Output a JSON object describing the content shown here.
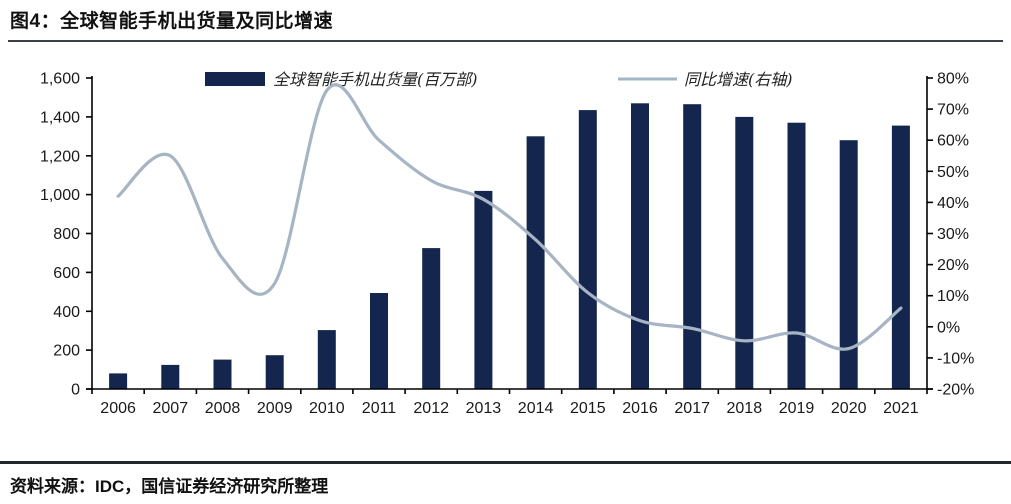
{
  "page": {
    "title": "图4：全球智能手机出货量及同比增速",
    "source": "资料来源：IDC，国信证券经济研究所整理"
  },
  "colors": {
    "bar": "#14264e",
    "line": "#a6b4c4",
    "axis": "#000000",
    "tick_label": "#1a1a1a",
    "legend_text": "#222222"
  },
  "chart_data": {
    "type": "combo_bar_line",
    "title": "全球智能手机出货量及同比增速",
    "grid": false,
    "legend_position": "top",
    "categories": [
      "2006",
      "2007",
      "2008",
      "2009",
      "2010",
      "2011",
      "2012",
      "2013",
      "2014",
      "2015",
      "2016",
      "2017",
      "2018",
      "2019",
      "2020",
      "2021"
    ],
    "series": [
      {
        "name": "全球智能手机出货量(百万部)",
        "type": "bar",
        "axis": "left",
        "values": [
          80,
          124,
          151,
          174,
          303,
          494,
          725,
          1019,
          1300,
          1435,
          1470,
          1465,
          1400,
          1370,
          1280,
          1355
        ]
      },
      {
        "name": "同比增速(右轴)",
        "type": "line",
        "axis": "right",
        "values": [
          42,
          55,
          22,
          14,
          76,
          60,
          47,
          41,
          28,
          11,
          2,
          -0.5,
          -4.5,
          -2,
          -7,
          6
        ]
      }
    ],
    "left_axis": {
      "min": 0,
      "max": 1600,
      "tick_values": [
        0,
        200,
        400,
        600,
        800,
        1000,
        1200,
        1400,
        1600
      ],
      "tick_labels": [
        "0",
        "200",
        "400",
        "600",
        "800",
        "1,000",
        "1,200",
        "1,400",
        "1,600"
      ]
    },
    "right_axis": {
      "min": -20,
      "max": 80,
      "tick_values": [
        -20,
        -10,
        0,
        10,
        20,
        30,
        40,
        50,
        60,
        70,
        80
      ],
      "tick_labels": [
        "-20%",
        "-10%",
        "0%",
        "10%",
        "20%",
        "30%",
        "40%",
        "50%",
        "60%",
        "70%",
        "80%"
      ]
    }
  }
}
